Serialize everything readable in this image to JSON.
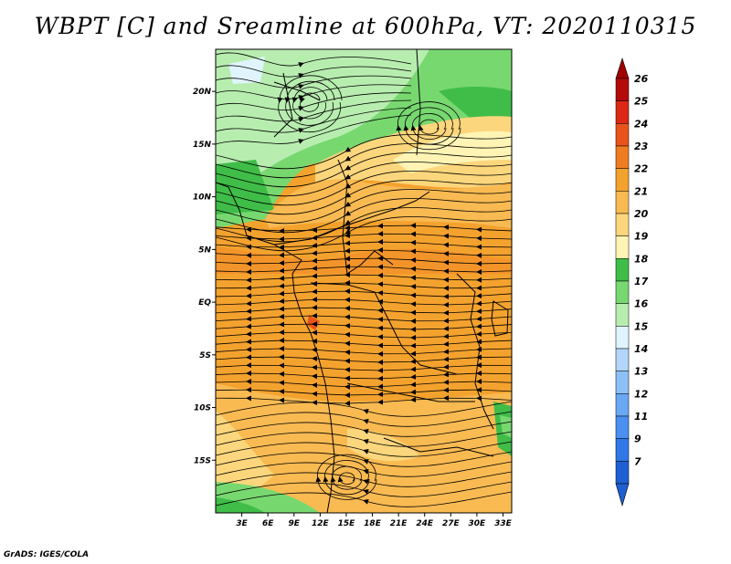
{
  "title": "WBPT [C] and Sreamline at 600hPa, VT: 2020110315",
  "credit": "GrADS: IGES/COLA",
  "map": {
    "lat_range": [
      -20,
      24
    ],
    "lon_range": [
      0,
      34
    ],
    "lat_ticks": [
      {
        "value": 20,
        "label": "20N"
      },
      {
        "value": 15,
        "label": "15N"
      },
      {
        "value": 10,
        "label": "10N"
      },
      {
        "value": 5,
        "label": "5N"
      },
      {
        "value": 0,
        "label": "EQ"
      },
      {
        "value": -5,
        "label": "5S"
      },
      {
        "value": -10,
        "label": "10S"
      },
      {
        "value": -15,
        "label": "15S"
      }
    ],
    "lon_ticks": [
      {
        "value": 3,
        "label": "3E"
      },
      {
        "value": 6,
        "label": "6E"
      },
      {
        "value": 9,
        "label": "9E"
      },
      {
        "value": 12,
        "label": "12E"
      },
      {
        "value": 15,
        "label": "15E"
      },
      {
        "value": 18,
        "label": "18E"
      },
      {
        "value": 21,
        "label": "21E"
      },
      {
        "value": 24,
        "label": "24E"
      },
      {
        "value": 27,
        "label": "27E"
      },
      {
        "value": 30,
        "label": "30E"
      },
      {
        "value": 33,
        "label": "33E"
      }
    ]
  },
  "colorbar": {
    "levels": [
      {
        "label": "7",
        "color": "#1e5fd2"
      },
      {
        "label": "9",
        "color": "#2f78e6"
      },
      {
        "label": "11",
        "color": "#4a90f0"
      },
      {
        "label": "12",
        "color": "#6aa8f4"
      },
      {
        "label": "13",
        "color": "#8cc0f6"
      },
      {
        "label": "14",
        "color": "#b2d6fa"
      },
      {
        "label": "15",
        "color": "#e0f4fd"
      },
      {
        "label": "16",
        "color": "#b8edb0"
      },
      {
        "label": "17",
        "color": "#78d870"
      },
      {
        "label": "18",
        "color": "#3fbd48"
      },
      {
        "label": "19",
        "color": "#fff4b4"
      },
      {
        "label": "20",
        "color": "#fcd67c"
      },
      {
        "label": "21",
        "color": "#f9ba52"
      },
      {
        "label": "22",
        "color": "#f4a22e"
      },
      {
        "label": "23",
        "color": "#f07c22"
      },
      {
        "label": "24",
        "color": "#ea541a"
      },
      {
        "label": "25",
        "color": "#dc2814"
      },
      {
        "label": "26",
        "color": "#b40a0a"
      }
    ],
    "arrow_low_color": "#1e5fd2",
    "arrow_high_color": "#a00000"
  }
}
